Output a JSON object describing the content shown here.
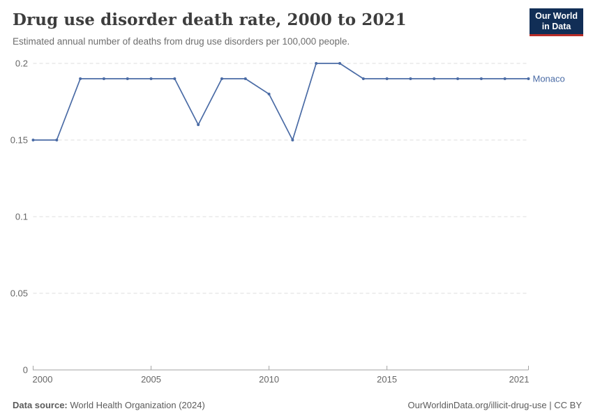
{
  "header": {
    "logo": {
      "line1": "Our World",
      "line2": "in Data",
      "bg_color": "#112e56",
      "accent_color": "#b92d28"
    }
  },
  "chart_data": {
    "type": "line",
    "title": "Drug use disorder death rate, 2000 to 2021",
    "subtitle": "Estimated annual number of deaths from drug use disorders per 100,000 people.",
    "xlabel": "",
    "ylabel": "",
    "xlim": [
      2000,
      2021
    ],
    "ylim": [
      0,
      0.2
    ],
    "x_ticks": [
      2000,
      2005,
      2010,
      2015,
      2021
    ],
    "y_ticks": [
      0,
      0.05,
      0.1,
      0.15,
      0.2
    ],
    "y_tick_labels": [
      "0",
      "0.05",
      "0.1",
      "0.15",
      "0.2"
    ],
    "grid": "horizontal-dashed",
    "legend_position": "end-of-line-label",
    "series": [
      {
        "name": "Monaco",
        "color": "#4a6ba5",
        "x": [
          2000,
          2001,
          2002,
          2003,
          2004,
          2005,
          2006,
          2007,
          2008,
          2009,
          2010,
          2011,
          2012,
          2013,
          2014,
          2015,
          2016,
          2017,
          2018,
          2019,
          2020,
          2021
        ],
        "values": [
          0.15,
          0.15,
          0.19,
          0.19,
          0.19,
          0.19,
          0.19,
          0.16,
          0.19,
          0.19,
          0.18,
          0.15,
          0.2,
          0.2,
          0.19,
          0.19,
          0.19,
          0.19,
          0.19,
          0.19,
          0.19,
          0.19
        ]
      }
    ]
  },
  "footer": {
    "source_label": "Data source:",
    "source_text": " World Health Organization (2024)",
    "credit": "OurWorldinData.org/illicit-drug-use | CC BY"
  }
}
